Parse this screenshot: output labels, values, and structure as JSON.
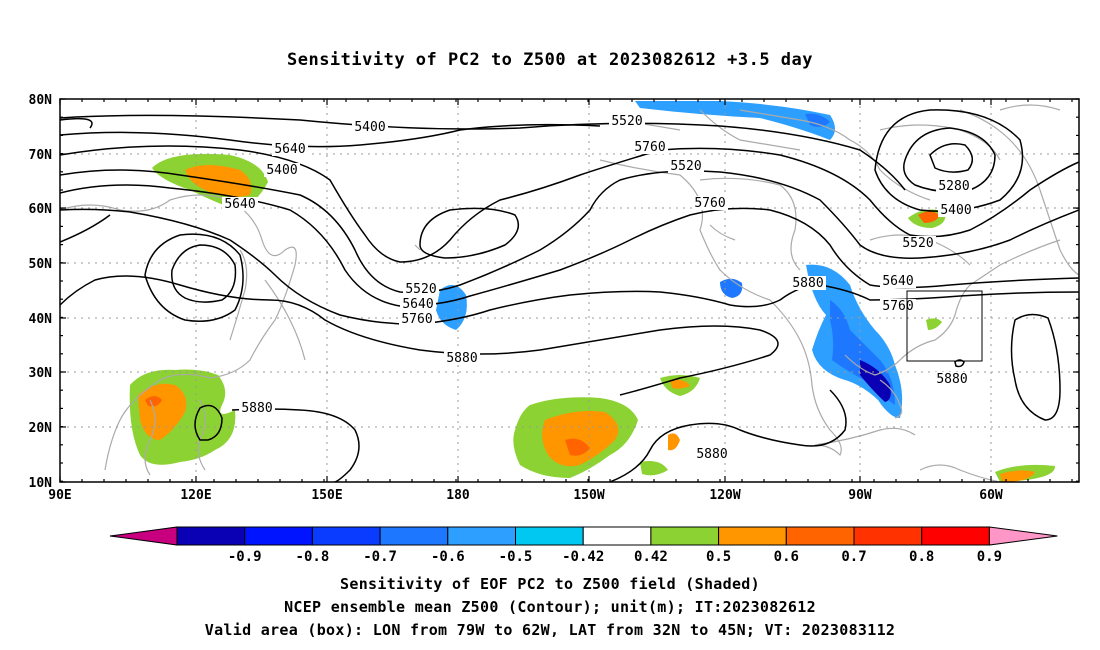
{
  "title": "Sensitivity of PC2 to Z500 at 2023082612 +3.5 day",
  "map": {
    "lat_labels": [
      "80N",
      "70N",
      "60N",
      "50N",
      "40N",
      "30N",
      "20N",
      "10N"
    ],
    "lon_labels": [
      "90E",
      "120E",
      "150E",
      "180",
      "150W",
      "120W",
      "90W",
      "60W"
    ],
    "contour_labels": [
      "5400",
      "5520",
      "5640",
      "5760",
      "5400",
      "5520",
      "5640",
      "5760",
      "5280",
      "5400",
      "5520",
      "5640",
      "5760",
      "5880",
      "5520",
      "5640",
      "5760",
      "5880",
      "5880",
      "5880",
      "5880"
    ],
    "valid_box": {
      "lon_west": "79W",
      "lon_east": "62W",
      "lat_south": "32N",
      "lat_north": "45N"
    }
  },
  "colorbar": {
    "labels": [
      "-0.9",
      "-0.8",
      "-0.7",
      "-0.6",
      "-0.5",
      "-0.42",
      "0.42",
      "0.5",
      "0.6",
      "0.7",
      "0.8",
      "0.9"
    ],
    "colors": [
      "#c8007f",
      "#0a00b4",
      "#0014ff",
      "#0a3cff",
      "#1e78ff",
      "#2da0ff",
      "#00c8f0",
      "#ffffff",
      "#8cd232",
      "#ff9600",
      "#ff6400",
      "#ff3200",
      "#ff0000",
      "#ff96c8"
    ]
  },
  "captions": {
    "line1": "Sensitivity of EOF PC2 to Z500 field (Shaded)",
    "line2": "NCEP ensemble mean Z500 (Contour); unit(m); IT:2023082612",
    "line3": "Valid area (box): LON from 79W to 62W, LAT from 32N to 45N; VT: 2023083112"
  }
}
